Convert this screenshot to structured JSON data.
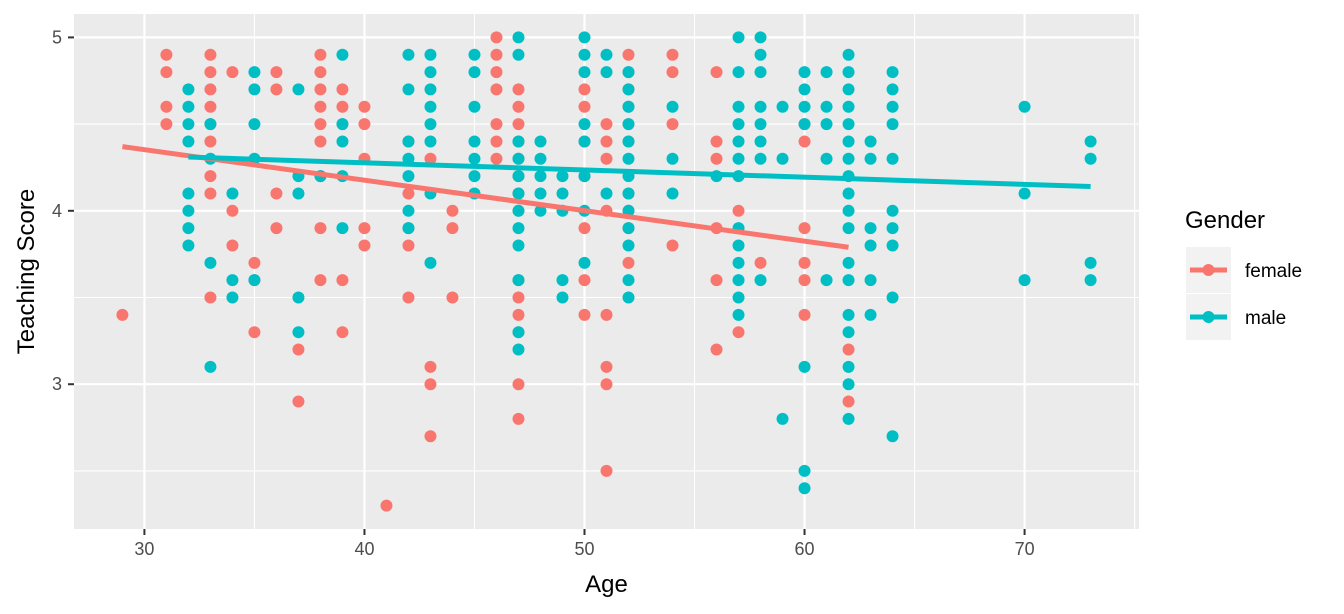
{
  "chart_data": {
    "type": "scatter",
    "title": "",
    "xlabel": "Age",
    "ylabel": "Teaching Score",
    "xlim": [
      26.8,
      75.2
    ],
    "ylim": [
      2.165,
      5.135
    ],
    "x_ticks": [
      30,
      40,
      50,
      60,
      70
    ],
    "y_ticks": [
      3,
      4,
      5
    ],
    "grid": true,
    "legend": {
      "title": "Gender",
      "position": "right"
    },
    "series": [
      {
        "name": "female",
        "color": "#F8766D",
        "fit_line": {
          "x": [
            29,
            62
          ],
          "y": [
            4.37,
            3.79
          ]
        },
        "points": [
          [
            29,
            3.4
          ],
          [
            31,
            4.9
          ],
          [
            31,
            4.8
          ],
          [
            31,
            4.6
          ],
          [
            31,
            4.5
          ],
          [
            33,
            4.9
          ],
          [
            33,
            4.8
          ],
          [
            33,
            4.7
          ],
          [
            33,
            4.6
          ],
          [
            33,
            4.5
          ],
          [
            33,
            4.4
          ],
          [
            33,
            4.2
          ],
          [
            33,
            4.1
          ],
          [
            33,
            3.5
          ],
          [
            34,
            4.8
          ],
          [
            34,
            4.0
          ],
          [
            34,
            3.8
          ],
          [
            35,
            3.7
          ],
          [
            35,
            3.6
          ],
          [
            35,
            3.3
          ],
          [
            36,
            4.8
          ],
          [
            36,
            4.7
          ],
          [
            36,
            4.1
          ],
          [
            36,
            3.9
          ],
          [
            37,
            3.2
          ],
          [
            37,
            2.9
          ],
          [
            38,
            4.9
          ],
          [
            38,
            4.8
          ],
          [
            38,
            4.7
          ],
          [
            38,
            4.6
          ],
          [
            38,
            4.5
          ],
          [
            38,
            4.4
          ],
          [
            38,
            4.2
          ],
          [
            38,
            3.9
          ],
          [
            38,
            3.6
          ],
          [
            39,
            4.7
          ],
          [
            39,
            4.6
          ],
          [
            39,
            4.5
          ],
          [
            39,
            3.6
          ],
          [
            39,
            3.3
          ],
          [
            40,
            4.6
          ],
          [
            40,
            4.5
          ],
          [
            40,
            4.3
          ],
          [
            40,
            3.9
          ],
          [
            40,
            3.8
          ],
          [
            41,
            2.3
          ],
          [
            42,
            4.4
          ],
          [
            42,
            4.1
          ],
          [
            42,
            3.9
          ],
          [
            42,
            3.8
          ],
          [
            42,
            3.5
          ],
          [
            43,
            4.3
          ],
          [
            43,
            3.1
          ],
          [
            43,
            3.0
          ],
          [
            43,
            2.7
          ],
          [
            44,
            4.0
          ],
          [
            44,
            3.9
          ],
          [
            44,
            3.5
          ],
          [
            46,
            5.0
          ],
          [
            46,
            4.9
          ],
          [
            46,
            4.8
          ],
          [
            46,
            4.7
          ],
          [
            46,
            4.5
          ],
          [
            46,
            4.4
          ],
          [
            46,
            4.3
          ],
          [
            47,
            4.7
          ],
          [
            47,
            4.6
          ],
          [
            47,
            4.5
          ],
          [
            47,
            4.4
          ],
          [
            47,
            4.3
          ],
          [
            47,
            4.2
          ],
          [
            47,
            4.1
          ],
          [
            47,
            4.0
          ],
          [
            47,
            3.6
          ],
          [
            47,
            3.5
          ],
          [
            47,
            3.4
          ],
          [
            47,
            3.3
          ],
          [
            47,
            3.0
          ],
          [
            47,
            2.8
          ],
          [
            50,
            4.7
          ],
          [
            50,
            4.6
          ],
          [
            50,
            4.4
          ],
          [
            50,
            4.2
          ],
          [
            50,
            3.9
          ],
          [
            50,
            3.6
          ],
          [
            50,
            3.4
          ],
          [
            51,
            4.5
          ],
          [
            51,
            4.4
          ],
          [
            51,
            4.3
          ],
          [
            51,
            4.0
          ],
          [
            51,
            3.4
          ],
          [
            51,
            3.1
          ],
          [
            51,
            3.0
          ],
          [
            51,
            2.5
          ],
          [
            52,
            4.9
          ],
          [
            52,
            4.8
          ],
          [
            52,
            4.7
          ],
          [
            52,
            4.6
          ],
          [
            52,
            4.5
          ],
          [
            52,
            4.4
          ],
          [
            52,
            4.1
          ],
          [
            52,
            4.0
          ],
          [
            52,
            3.9
          ],
          [
            52,
            3.7
          ],
          [
            54,
            4.9
          ],
          [
            54,
            4.8
          ],
          [
            54,
            4.5
          ],
          [
            54,
            3.8
          ],
          [
            56,
            4.8
          ],
          [
            56,
            4.4
          ],
          [
            56,
            4.3
          ],
          [
            56,
            3.9
          ],
          [
            56,
            3.6
          ],
          [
            56,
            3.2
          ],
          [
            57,
            4.0
          ],
          [
            57,
            3.3
          ],
          [
            58,
            3.7
          ],
          [
            60,
            4.5
          ],
          [
            60,
            4.4
          ],
          [
            60,
            3.9
          ],
          [
            60,
            3.7
          ],
          [
            60,
            3.6
          ],
          [
            60,
            3.4
          ],
          [
            62,
            3.2
          ],
          [
            62,
            2.9
          ]
        ]
      },
      {
        "name": "male",
        "color": "#00BFC4",
        "fit_line": {
          "x": [
            32,
            73
          ],
          "y": [
            4.31,
            4.14
          ]
        },
        "points": [
          [
            32,
            4.7
          ],
          [
            32,
            4.6
          ],
          [
            32,
            4.5
          ],
          [
            32,
            4.4
          ],
          [
            32,
            4.1
          ],
          [
            32,
            4.0
          ],
          [
            32,
            3.9
          ],
          [
            32,
            3.8
          ],
          [
            33,
            4.5
          ],
          [
            33,
            4.3
          ],
          [
            33,
            3.7
          ],
          [
            33,
            3.1
          ],
          [
            34,
            4.1
          ],
          [
            34,
            3.6
          ],
          [
            34,
            3.5
          ],
          [
            35,
            4.8
          ],
          [
            35,
            4.7
          ],
          [
            35,
            4.5
          ],
          [
            35,
            4.3
          ],
          [
            35,
            3.6
          ],
          [
            37,
            4.7
          ],
          [
            37,
            4.2
          ],
          [
            37,
            4.1
          ],
          [
            37,
            3.5
          ],
          [
            37,
            3.3
          ],
          [
            38,
            4.2
          ],
          [
            39,
            4.9
          ],
          [
            39,
            4.5
          ],
          [
            39,
            4.4
          ],
          [
            39,
            4.2
          ],
          [
            39,
            3.9
          ],
          [
            42,
            4.9
          ],
          [
            42,
            4.7
          ],
          [
            42,
            4.4
          ],
          [
            42,
            4.3
          ],
          [
            42,
            4.2
          ],
          [
            42,
            4.0
          ],
          [
            42,
            3.9
          ],
          [
            43,
            4.9
          ],
          [
            43,
            4.8
          ],
          [
            43,
            4.7
          ],
          [
            43,
            4.6
          ],
          [
            43,
            4.5
          ],
          [
            43,
            4.4
          ],
          [
            43,
            4.1
          ],
          [
            43,
            3.7
          ],
          [
            45,
            4.9
          ],
          [
            45,
            4.8
          ],
          [
            45,
            4.6
          ],
          [
            45,
            4.4
          ],
          [
            45,
            4.3
          ],
          [
            45,
            4.2
          ],
          [
            45,
            4.1
          ],
          [
            47,
            5.0
          ],
          [
            47,
            4.9
          ],
          [
            47,
            4.4
          ],
          [
            47,
            4.3
          ],
          [
            47,
            4.2
          ],
          [
            47,
            4.1
          ],
          [
            47,
            4.0
          ],
          [
            47,
            3.9
          ],
          [
            47,
            3.8
          ],
          [
            47,
            3.6
          ],
          [
            47,
            3.3
          ],
          [
            47,
            3.2
          ],
          [
            48,
            4.4
          ],
          [
            48,
            4.3
          ],
          [
            48,
            4.2
          ],
          [
            48,
            4.1
          ],
          [
            48,
            4.0
          ],
          [
            49,
            4.2
          ],
          [
            49,
            4.1
          ],
          [
            49,
            4.0
          ],
          [
            49,
            3.6
          ],
          [
            49,
            3.5
          ],
          [
            50,
            5.0
          ],
          [
            50,
            4.9
          ],
          [
            50,
            4.8
          ],
          [
            50,
            4.5
          ],
          [
            50,
            4.4
          ],
          [
            50,
            4.2
          ],
          [
            50,
            4.0
          ],
          [
            50,
            3.7
          ],
          [
            51,
            4.9
          ],
          [
            51,
            4.8
          ],
          [
            51,
            4.1
          ],
          [
            52,
            4.8
          ],
          [
            52,
            4.7
          ],
          [
            52,
            4.6
          ],
          [
            52,
            4.5
          ],
          [
            52,
            4.4
          ],
          [
            52,
            4.3
          ],
          [
            52,
            4.2
          ],
          [
            52,
            4.1
          ],
          [
            52,
            4.0
          ],
          [
            52,
            3.9
          ],
          [
            52,
            3.8
          ],
          [
            52,
            3.6
          ],
          [
            52,
            3.5
          ],
          [
            54,
            4.6
          ],
          [
            54,
            4.3
          ],
          [
            54,
            4.1
          ],
          [
            56,
            4.2
          ],
          [
            57,
            5.0
          ],
          [
            57,
            4.8
          ],
          [
            57,
            4.6
          ],
          [
            57,
            4.5
          ],
          [
            57,
            4.4
          ],
          [
            57,
            4.3
          ],
          [
            57,
            4.2
          ],
          [
            57,
            3.9
          ],
          [
            57,
            3.8
          ],
          [
            57,
            3.7
          ],
          [
            57,
            3.6
          ],
          [
            57,
            3.5
          ],
          [
            57,
            3.4
          ],
          [
            58,
            5.0
          ],
          [
            58,
            4.9
          ],
          [
            58,
            4.8
          ],
          [
            58,
            4.6
          ],
          [
            58,
            4.5
          ],
          [
            58,
            4.4
          ],
          [
            58,
            4.3
          ],
          [
            58,
            3.6
          ],
          [
            59,
            4.6
          ],
          [
            59,
            4.3
          ],
          [
            59,
            2.8
          ],
          [
            60,
            4.8
          ],
          [
            60,
            4.7
          ],
          [
            60,
            4.6
          ],
          [
            60,
            4.5
          ],
          [
            60,
            3.1
          ],
          [
            60,
            2.5
          ],
          [
            60,
            2.4
          ],
          [
            61,
            4.8
          ],
          [
            61,
            4.6
          ],
          [
            61,
            4.5
          ],
          [
            61,
            4.3
          ],
          [
            61,
            3.6
          ],
          [
            62,
            4.9
          ],
          [
            62,
            4.8
          ],
          [
            62,
            4.7
          ],
          [
            62,
            4.6
          ],
          [
            62,
            4.5
          ],
          [
            62,
            4.4
          ],
          [
            62,
            4.3
          ],
          [
            62,
            4.2
          ],
          [
            62,
            4.1
          ],
          [
            62,
            4.0
          ],
          [
            62,
            3.9
          ],
          [
            62,
            3.7
          ],
          [
            62,
            3.6
          ],
          [
            62,
            3.4
          ],
          [
            62,
            3.3
          ],
          [
            62,
            3.1
          ],
          [
            62,
            3.0
          ],
          [
            62,
            2.8
          ],
          [
            63,
            4.4
          ],
          [
            63,
            4.3
          ],
          [
            63,
            3.9
          ],
          [
            63,
            3.8
          ],
          [
            63,
            3.6
          ],
          [
            63,
            3.4
          ],
          [
            64,
            4.8
          ],
          [
            64,
            4.7
          ],
          [
            64,
            4.6
          ],
          [
            64,
            4.5
          ],
          [
            64,
            4.3
          ],
          [
            64,
            4.0
          ],
          [
            64,
            3.9
          ],
          [
            64,
            3.8
          ],
          [
            64,
            3.5
          ],
          [
            64,
            2.7
          ],
          [
            70,
            4.6
          ],
          [
            70,
            4.1
          ],
          [
            70,
            3.6
          ],
          [
            73,
            4.4
          ],
          [
            73,
            4.3
          ],
          [
            73,
            3.7
          ],
          [
            73,
            3.6
          ]
        ]
      }
    ]
  }
}
